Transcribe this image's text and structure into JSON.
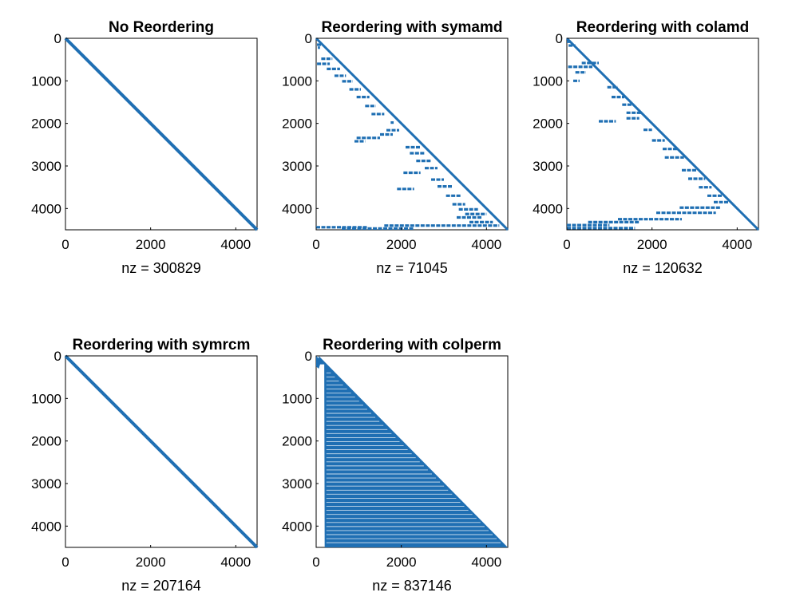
{
  "figure": {
    "marker_color": "#1f6fb3",
    "background": "#ffffff"
  },
  "chart_data": [
    {
      "type": "spy",
      "title": "No Reordering",
      "xlabel": "nz = 300829",
      "nz": 300829,
      "n": 4500,
      "xlim": [
        0,
        4500
      ],
      "ylim": [
        0,
        4500
      ],
      "y_reversed": true,
      "xticks": [
        0,
        2000,
        4000
      ],
      "yticks": [
        0,
        1000,
        2000,
        3000,
        4000
      ],
      "structure": "band",
      "bandwidth": 40
    },
    {
      "type": "spy",
      "title": "Reordering with symamd",
      "xlabel": "nz = 71045",
      "nz": 71045,
      "n": 4500,
      "xlim": [
        0,
        4500
      ],
      "ylim": [
        0,
        4500
      ],
      "y_reversed": true,
      "xticks": [
        0,
        2000,
        4000
      ],
      "yticks": [
        0,
        1000,
        2000,
        3000,
        4000
      ],
      "structure": "lower-diagonal-plus-segments",
      "bandwidth": 25,
      "segments": [
        {
          "row": 150,
          "col_start": 20,
          "col_end": 130
        },
        {
          "row": 220,
          "col_start": 40,
          "col_end": 90
        },
        {
          "row": 480,
          "col_start": 120,
          "col_end": 380
        },
        {
          "row": 600,
          "col_start": 20,
          "col_end": 320
        },
        {
          "row": 720,
          "col_start": 250,
          "col_end": 560
        },
        {
          "row": 880,
          "col_start": 430,
          "col_end": 700
        },
        {
          "row": 1010,
          "col_start": 610,
          "col_end": 860
        },
        {
          "row": 1200,
          "col_start": 780,
          "col_end": 1050
        },
        {
          "row": 1380,
          "col_start": 950,
          "col_end": 1250
        },
        {
          "row": 1590,
          "col_start": 1150,
          "col_end": 1400
        },
        {
          "row": 1780,
          "col_start": 1300,
          "col_end": 1600
        },
        {
          "row": 1980,
          "col_start": 1750,
          "col_end": 1820
        },
        {
          "row": 2160,
          "col_start": 1650,
          "col_end": 1950
        },
        {
          "row": 2260,
          "col_start": 1500,
          "col_end": 1800
        },
        {
          "row": 2340,
          "col_start": 950,
          "col_end": 1500
        },
        {
          "row": 2420,
          "col_start": 900,
          "col_end": 1150
        },
        {
          "row": 2560,
          "col_start": 2100,
          "col_end": 2450
        },
        {
          "row": 2700,
          "col_start": 2200,
          "col_end": 2550
        },
        {
          "row": 2880,
          "col_start": 2350,
          "col_end": 2700
        },
        {
          "row": 3050,
          "col_start": 2550,
          "col_end": 2850
        },
        {
          "row": 3160,
          "col_start": 2050,
          "col_end": 2450
        },
        {
          "row": 3320,
          "col_start": 2700,
          "col_end": 3000
        },
        {
          "row": 3480,
          "col_start": 2850,
          "col_end": 3200
        },
        {
          "row": 3540,
          "col_start": 1900,
          "col_end": 2300
        },
        {
          "row": 3700,
          "col_start": 3050,
          "col_end": 3400
        },
        {
          "row": 3900,
          "col_start": 3200,
          "col_end": 3500
        },
        {
          "row": 4020,
          "col_start": 3350,
          "col_end": 3800
        },
        {
          "row": 4130,
          "col_start": 3500,
          "col_end": 4000
        },
        {
          "row": 4210,
          "col_start": 3300,
          "col_end": 3900
        },
        {
          "row": 4320,
          "col_start": 3600,
          "col_end": 4150
        },
        {
          "row": 4400,
          "col_start": 1600,
          "col_end": 4300
        },
        {
          "row": 4440,
          "col_start": 0,
          "col_end": 1200
        },
        {
          "row": 4470,
          "col_start": 600,
          "col_end": 2300
        }
      ]
    },
    {
      "type": "spy",
      "title": "Reordering with colamd",
      "xlabel": "nz = 120632",
      "nz": 120632,
      "n": 4500,
      "xlim": [
        0,
        4500
      ],
      "ylim": [
        0,
        4500
      ],
      "y_reversed": true,
      "xticks": [
        0,
        2000,
        4000
      ],
      "yticks": [
        0,
        1000,
        2000,
        3000,
        4000
      ],
      "structure": "lower-diagonal-plus-segments",
      "bandwidth": 30,
      "segments": [
        {
          "row": 80,
          "col_start": 0,
          "col_end": 90
        },
        {
          "row": 170,
          "col_start": 40,
          "col_end": 200
        },
        {
          "row": 580,
          "col_start": 350,
          "col_end": 750
        },
        {
          "row": 670,
          "col_start": 30,
          "col_end": 600
        },
        {
          "row": 800,
          "col_start": 200,
          "col_end": 450
        },
        {
          "row": 1000,
          "col_start": 150,
          "col_end": 300
        },
        {
          "row": 1150,
          "col_start": 950,
          "col_end": 1200
        },
        {
          "row": 1380,
          "col_start": 1050,
          "col_end": 1350
        },
        {
          "row": 1560,
          "col_start": 1300,
          "col_end": 1550
        },
        {
          "row": 1750,
          "col_start": 1400,
          "col_end": 1750
        },
        {
          "row": 1880,
          "col_start": 1400,
          "col_end": 1700
        },
        {
          "row": 1950,
          "col_start": 750,
          "col_end": 1150
        },
        {
          "row": 2150,
          "col_start": 1800,
          "col_end": 2000
        },
        {
          "row": 2400,
          "col_start": 2000,
          "col_end": 2300
        },
        {
          "row": 2600,
          "col_start": 2250,
          "col_end": 2600
        },
        {
          "row": 2800,
          "col_start": 2300,
          "col_end": 2750
        },
        {
          "row": 3100,
          "col_start": 2700,
          "col_end": 3050
        },
        {
          "row": 3300,
          "col_start": 2850,
          "col_end": 3250
        },
        {
          "row": 3500,
          "col_start": 3100,
          "col_end": 3400
        },
        {
          "row": 3700,
          "col_start": 3300,
          "col_end": 3650
        },
        {
          "row": 3850,
          "col_start": 3450,
          "col_end": 3800
        },
        {
          "row": 3980,
          "col_start": 2650,
          "col_end": 3600
        },
        {
          "row": 4100,
          "col_start": 2100,
          "col_end": 3500
        },
        {
          "row": 4250,
          "col_start": 1200,
          "col_end": 2700
        },
        {
          "row": 4320,
          "col_start": 500,
          "col_end": 1700
        },
        {
          "row": 4390,
          "col_start": 0,
          "col_end": 1000
        },
        {
          "row": 4460,
          "col_start": 0,
          "col_end": 1600
        }
      ]
    },
    {
      "type": "spy",
      "title": "Reordering with symrcm",
      "xlabel": "nz = 207164",
      "nz": 207164,
      "n": 4500,
      "xlim": [
        0,
        4500
      ],
      "ylim": [
        0,
        4500
      ],
      "y_reversed": true,
      "xticks": [
        0,
        2000,
        4000
      ],
      "yticks": [
        0,
        1000,
        2000,
        3000,
        4000
      ],
      "structure": "band",
      "bandwidth": 28
    },
    {
      "type": "spy",
      "title": "Reordering with colperm",
      "xlabel": "nz = 837146",
      "nz": 837146,
      "n": 4500,
      "xlim": [
        0,
        4500
      ],
      "ylim": [
        0,
        4500
      ],
      "y_reversed": true,
      "xticks": [
        0,
        2000,
        4000
      ],
      "yticks": [
        0,
        1000,
        2000,
        3000,
        4000
      ],
      "structure": "filled-lower-triangle",
      "left_col": 60,
      "left_col_bottom": 200,
      "top_row": 200,
      "gap_every_rows": 95
    }
  ]
}
